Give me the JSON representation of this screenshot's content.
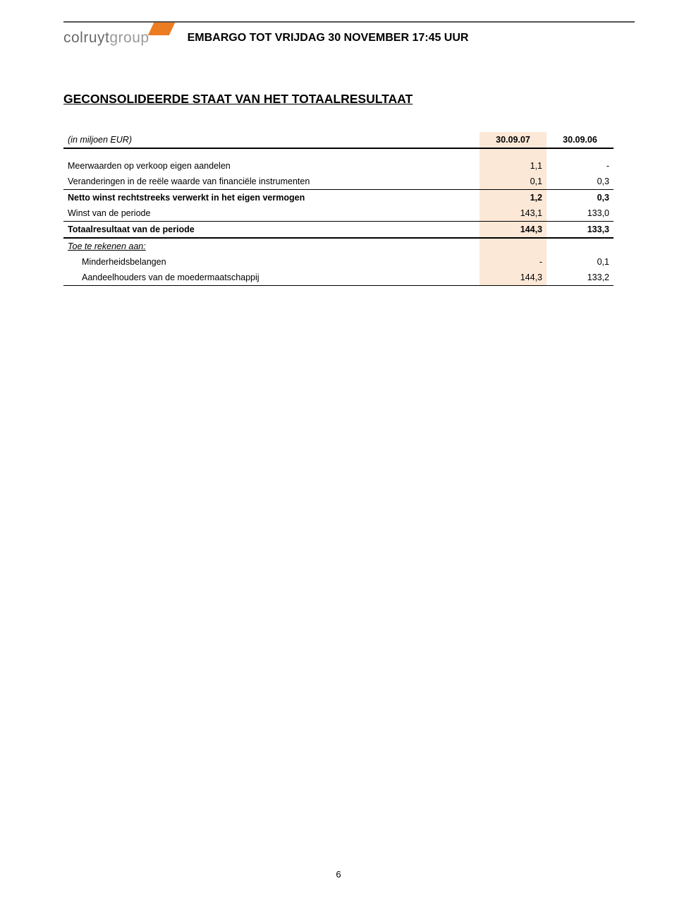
{
  "colors": {
    "accent_orange": "#ec7c22",
    "highlight_bg": "#fbe8d7",
    "rule_gray": "#555555",
    "logo_gray": "#6a6a6a",
    "logo_light": "#9a9a9a"
  },
  "header": {
    "logo_primary": "colruyt",
    "logo_secondary": "group",
    "embargo": "EMBARGO TOT VRIJDAG 30 NOVEMBER 17:45 UUR"
  },
  "title": "GECONSOLIDEERDE STAAT VAN HET TOTAALRESULTAAT",
  "table": {
    "unit_label": "(in miljoen EUR)",
    "col1": "30.09.07",
    "col2": "30.09.06",
    "rows": [
      {
        "label": "Meerwaarden op verkoop eigen aandelen",
        "v1": "1,1",
        "v2": "-"
      },
      {
        "label": "Veranderingen in de reële waarde van financiële instrumenten",
        "v1": "0,1",
        "v2": "0,3"
      },
      {
        "label": "Netto winst rechtstreeks verwerkt in het eigen vermogen",
        "v1": "1,2",
        "v2": "0,3"
      },
      {
        "label": "Winst van de periode",
        "v1": "143,1",
        "v2": "133,0"
      },
      {
        "label": "Totaalresultaat van de periode",
        "v1": "144,3",
        "v2": "133,3"
      }
    ],
    "subheading": "Toe te rekenen aan:",
    "sub_rows": [
      {
        "label": "Minderheidsbelangen",
        "v1": "-",
        "v2": "0,1"
      },
      {
        "label": "Aandeelhouders van de moedermaatschappij",
        "v1": "144,3",
        "v2": "133,2"
      }
    ]
  },
  "page_number": "6"
}
